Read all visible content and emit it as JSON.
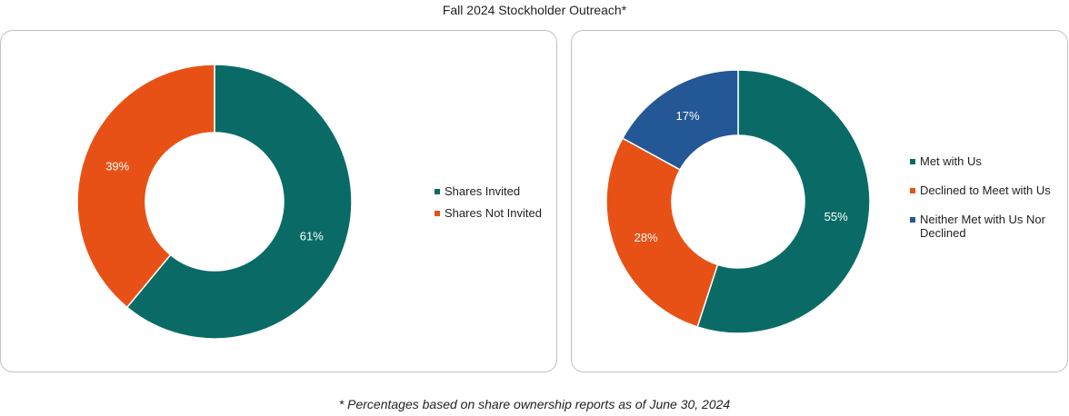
{
  "title": "Fall 2024 Stockholder Outreach*",
  "footnote": "* Percentages based on share ownership reports as of June 30, 2024",
  "chart_data": [
    {
      "type": "pie",
      "donut": true,
      "categories": [
        "Shares Invited",
        "Shares Not Invited"
      ],
      "values": [
        61,
        39
      ],
      "labels": [
        "61%",
        "39%"
      ],
      "colors": [
        "#0a6b66",
        "#e85115"
      ],
      "legend_position": "right"
    },
    {
      "type": "pie",
      "donut": true,
      "categories": [
        "Met with Us",
        "Declined to Meet with Us",
        "Neither Met with Us Nor Declined"
      ],
      "values": [
        55,
        28,
        17
      ],
      "labels": [
        "55%",
        "28%",
        "17%"
      ],
      "colors": [
        "#0a6b66",
        "#e85115",
        "#245796"
      ],
      "legend_position": "right"
    }
  ]
}
